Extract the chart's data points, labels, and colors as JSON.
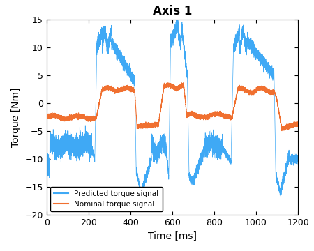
{
  "title": "Axis 1",
  "xlabel": "Time [ms]",
  "ylabel": "Torque [Nm]",
  "xlim": [
    0,
    1200
  ],
  "ylim": [
    -20,
    15
  ],
  "yticks": [
    -20,
    -15,
    -10,
    -5,
    0,
    5,
    10,
    15
  ],
  "xticks": [
    0,
    200,
    400,
    600,
    800,
    1000,
    1200
  ],
  "blue_color": "#3fa9f5",
  "orange_color": "#f07030",
  "legend_labels": [
    "Predicted torque signal",
    "Nominal torque signal"
  ],
  "title_fontsize": 12,
  "label_fontsize": 10,
  "tick_fontsize": 9,
  "figwidth": 4.5,
  "figheight": 3.6,
  "dpi": 100
}
